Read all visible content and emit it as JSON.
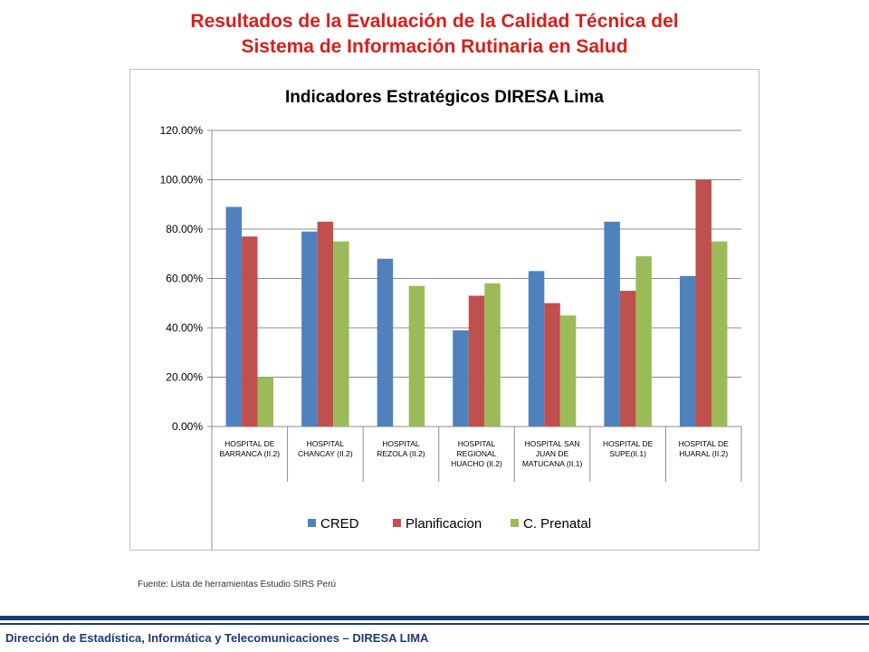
{
  "slide": {
    "title_line1": "Resultados de la Evaluación de la Calidad Técnica del",
    "title_line2": "Sistema de Información Rutinaria en Salud",
    "title_color": "#d7201c",
    "source": "Fuente: Lista de herramientas Estudio SIRS Perú",
    "footer": "Dirección de Estadística, Informática y Telecomunicaciones – DIRESA LIMA",
    "footer_color": "#1f3a78"
  },
  "chart_data": {
    "type": "bar",
    "title": "Indicadores Estratégicos DIRESA Lima",
    "xlabel": "",
    "ylabel": "",
    "ylim": [
      0,
      120
    ],
    "yticks": [
      "0.00%",
      "20.00%",
      "40.00%",
      "60.00%",
      "80.00%",
      "100.00%",
      "120.00%"
    ],
    "grid": true,
    "legend_position": "bottom",
    "categories": [
      [
        "HOSPITAL DE",
        "BARRANCA (II.2)"
      ],
      [
        "HOSPITAL",
        "CHANCAY  (II.2)"
      ],
      [
        "HOSPITAL",
        "REZOLA (II.2)"
      ],
      [
        "HOSPITAL",
        "REGIONAL",
        "HUACHO (II.2)"
      ],
      [
        "HOSPITAL SAN",
        "JUAN DE",
        "MATUCANA (II.1)"
      ],
      [
        "HOSPITAL DE",
        "SUPE(II.1)"
      ],
      [
        "HOSPITAL DE",
        "HUARAL  (II.2)"
      ]
    ],
    "series": [
      {
        "name": "CRED",
        "color": "#4f81bd",
        "values": [
          89,
          79,
          68,
          39,
          63,
          83,
          61
        ]
      },
      {
        "name": "Planificacion",
        "color": "#c0504d",
        "values": [
          77,
          83,
          null,
          53,
          50,
          55,
          100
        ]
      },
      {
        "name": "C. Prenatal",
        "color": "#9bbb59",
        "values": [
          20,
          75,
          57,
          58,
          45,
          69,
          75
        ]
      }
    ]
  }
}
